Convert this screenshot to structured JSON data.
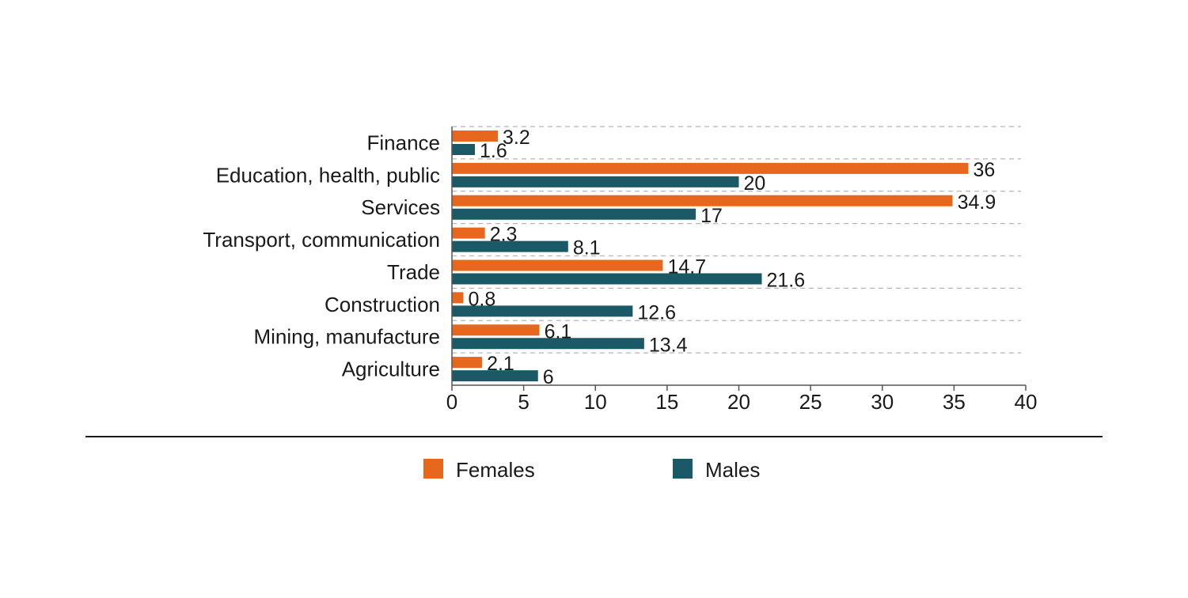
{
  "chart_data": {
    "type": "bar",
    "orientation": "horizontal",
    "title": "",
    "xlabel": "",
    "ylabel": "",
    "xlim": [
      0,
      40
    ],
    "x_ticks": [
      0,
      5,
      10,
      15,
      20,
      25,
      30,
      35,
      40
    ],
    "grid": true,
    "legend_position": "bottom-center",
    "categories": [
      "Finance",
      "Education, health, public",
      "Services",
      "Transport, communication",
      "Trade",
      "Construction",
      "Mining, manufacture",
      "Agriculture"
    ],
    "series": [
      {
        "name": "Females",
        "color": "#e8671e",
        "values": [
          3.2,
          36,
          34.9,
          2.3,
          14.7,
          0.8,
          6.1,
          2.1
        ],
        "labels": [
          "3.2",
          "36",
          "34.9",
          "2.3",
          "14.7",
          "0.8",
          "6.1",
          "2.1"
        ]
      },
      {
        "name": "Males",
        "color": "#1a5965",
        "values": [
          1.6,
          20,
          17,
          8.1,
          21.6,
          12.6,
          13.4,
          6
        ],
        "labels": [
          "1.6",
          "20",
          "17",
          "8.1",
          "21.6",
          "12.6",
          "13.4",
          "6"
        ]
      }
    ]
  }
}
